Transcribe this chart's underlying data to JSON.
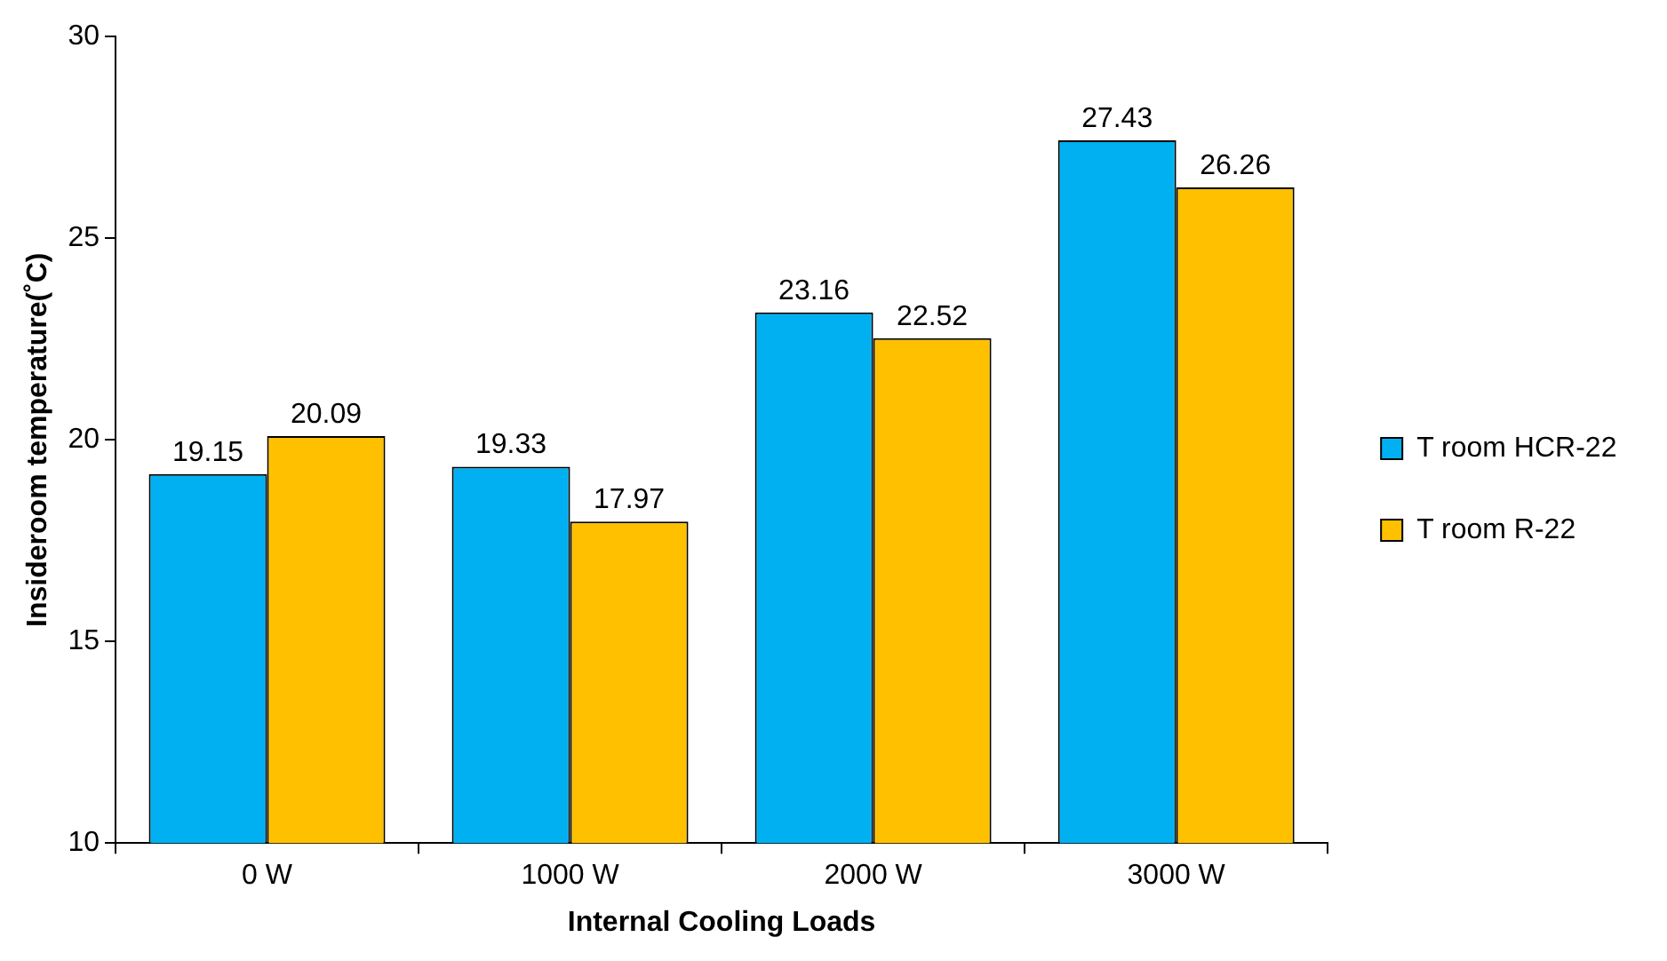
{
  "chart_data": {
    "type": "bar",
    "xlabel": "Internal Cooling Loads",
    "ylabel": "Insideroom temperature(˚C)",
    "categories": [
      "0 W",
      "1000 W",
      "2000 W",
      "3000 W"
    ],
    "series": [
      {
        "name": "T room HCR-22",
        "color": "#00b0f0",
        "values": [
          19.15,
          19.33,
          23.16,
          27.43
        ]
      },
      {
        "name": "T room R-22",
        "color": "#ffc000",
        "values": [
          20.09,
          17.97,
          22.52,
          26.26
        ]
      }
    ],
    "ylim": [
      10,
      30
    ],
    "yticks": [
      10,
      15,
      20,
      25,
      30
    ],
    "grid": false,
    "legend": "right",
    "data_labels": true
  }
}
